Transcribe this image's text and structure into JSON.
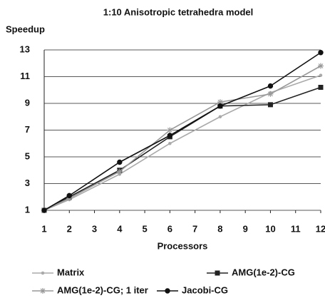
{
  "chart_data": {
    "type": "line",
    "title": "1:10 Anisotropic tetrahedra model",
    "y_label": "Speedup",
    "x_label": "Processors",
    "x": [
      1,
      2,
      4,
      6,
      8,
      10,
      12
    ],
    "xlim": [
      1,
      12
    ],
    "xticks": [
      1,
      2,
      3,
      4,
      5,
      6,
      7,
      8,
      9,
      10,
      11,
      12
    ],
    "ylim": [
      1,
      13
    ],
    "yticks": [
      1,
      3,
      5,
      7,
      9,
      11,
      13
    ],
    "grid": true,
    "legend": "bottom",
    "series": [
      {
        "name": "Matrix",
        "color": "#aaaaaa",
        "marker": "dot",
        "values": [
          1,
          1.8,
          3.7,
          6.0,
          8.0,
          9.8,
          11.1
        ]
      },
      {
        "name": "AMG(1e-2)-CG",
        "color": "#222222",
        "marker": "square",
        "values": [
          1,
          2.0,
          4.0,
          6.5,
          8.8,
          8.9,
          10.2
        ]
      },
      {
        "name": "AMG(1e-2)-CG; 1 iter",
        "color": "#999999",
        "marker": "star",
        "values": [
          1,
          1.9,
          3.9,
          7.0,
          9.1,
          9.7,
          11.8
        ]
      },
      {
        "name": "Jacobi-CG",
        "color": "#111111",
        "marker": "circle",
        "values": [
          1,
          2.1,
          4.6,
          6.6,
          8.8,
          10.3,
          12.8
        ]
      }
    ]
  }
}
